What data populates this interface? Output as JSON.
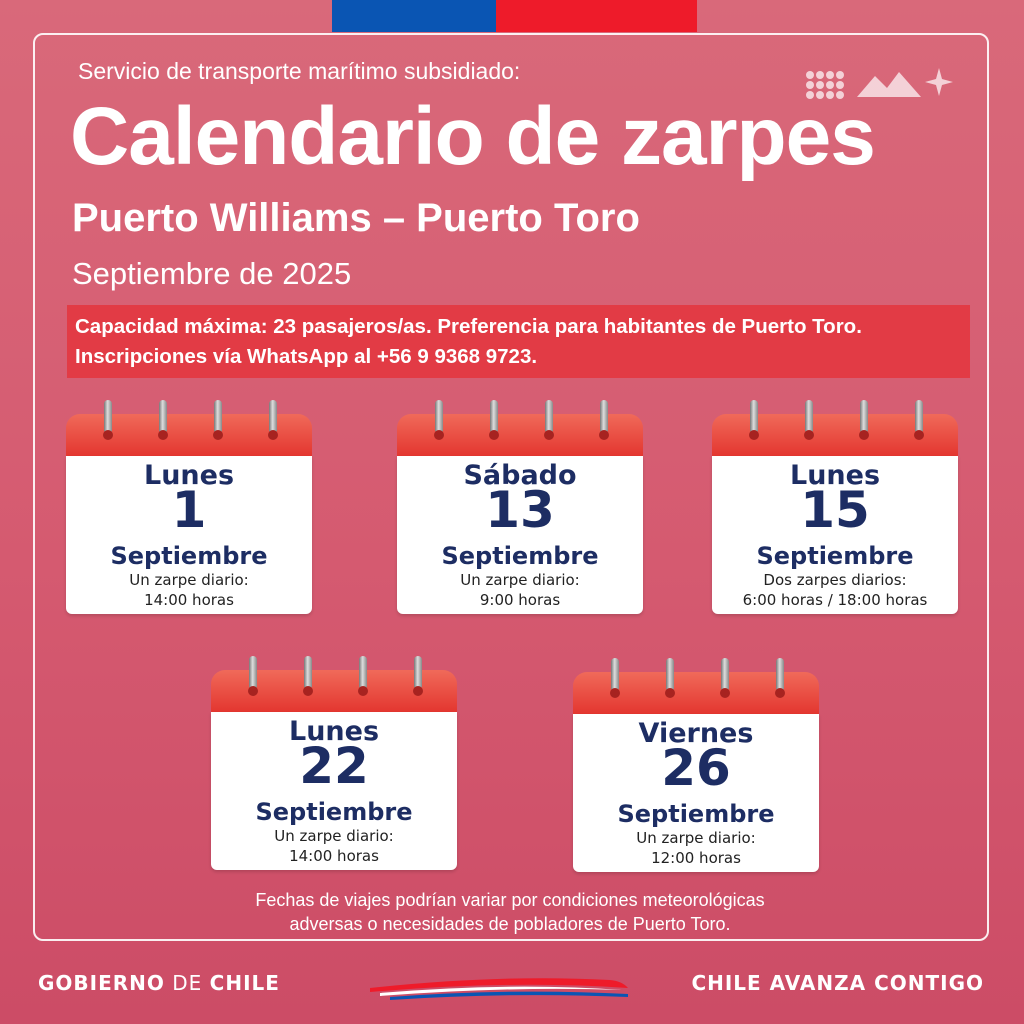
{
  "header": {
    "subtitle": "Servicio de transporte marítimo subsidiado:",
    "title": "Calendario de zarpes",
    "route": "Puerto Williams – Puerto Toro",
    "month": "Septiembre de 2025"
  },
  "notice": {
    "line1": "Capacidad máxima: 23 pasajeros/as. Preferencia para habitantes de Puerto Toro.",
    "line2": "Inscripciones vía WhatsApp al +56 9 9368 9723."
  },
  "calendars": [
    {
      "day": "Lunes",
      "number": "1",
      "month": "Septiembre",
      "line1": "Un zarpe diario:",
      "line2": "14:00 horas"
    },
    {
      "day": "Sábado",
      "number": "13",
      "month": "Septiembre",
      "line1": "Un zarpe diario:",
      "line2": "9:00 horas"
    },
    {
      "day": "Lunes",
      "number": "15",
      "month": "Septiembre",
      "line1": "Dos zarpes diarios:",
      "line2": "6:00 horas / 18:00 horas"
    },
    {
      "day": "Lunes",
      "number": "22",
      "month": "Septiembre",
      "line1": "Un zarpe diario:",
      "line2": "14:00 horas"
    },
    {
      "day": "Viernes",
      "number": "26",
      "month": "Septiembre",
      "line1": "Un zarpe diario:",
      "line2": "12:00 horas"
    }
  ],
  "footnote": {
    "line1": "Fechas de viajes podrían variar por condiciones meteorológicas",
    "line2": "adversas o necesidades de pobladores de Puerto Toro."
  },
  "footer": {
    "left_bold": "GOBIERNO",
    "left_light": " DE ",
    "left_bold2": "CHILE",
    "right": "CHILE AVANZA CONTIGO"
  },
  "colors": {
    "background": "#d55a70",
    "flag_blue": "#0a55b3",
    "flag_red": "#ee1b2a",
    "notice_bg": "#e23b45",
    "calendar_text": "#1d2d63"
  },
  "icons": [
    "dots-grid-icon",
    "mountains-icon",
    "sparkle-icon",
    "calendar-icon"
  ]
}
